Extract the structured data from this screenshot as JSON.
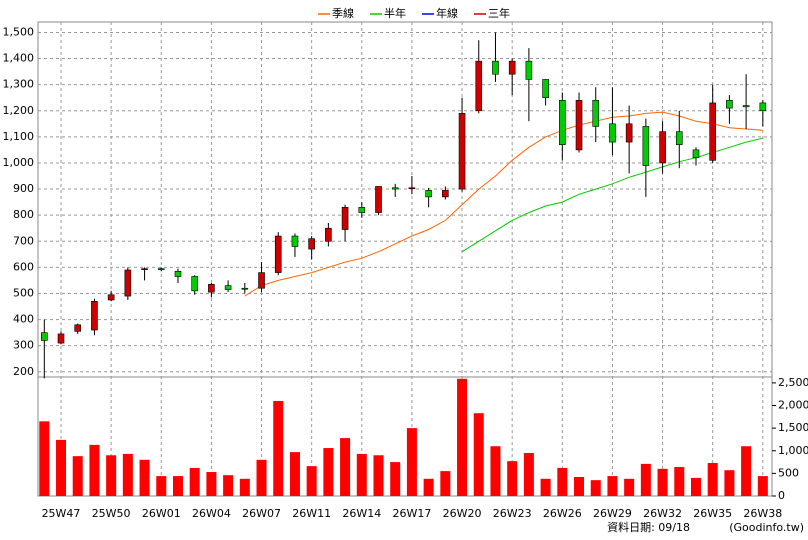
{
  "chart_data": {
    "type": "candlestick",
    "categories": [
      null,
      "25W47",
      null,
      null,
      "25W50",
      null,
      null,
      "26W01",
      null,
      null,
      "26W04",
      null,
      null,
      "26W07",
      null,
      null,
      "26W11",
      null,
      null,
      "26W14",
      null,
      null,
      "26W17",
      null,
      null,
      "26W20",
      null,
      null,
      "26W23",
      null,
      null,
      "26W26",
      null,
      null,
      "26W29",
      null,
      null,
      "26W32",
      null,
      null,
      "26W35",
      null,
      null,
      "26W38"
    ],
    "open": [
      350,
      310,
      355,
      360,
      475,
      490,
      595,
      595,
      585,
      565,
      505,
      530,
      520,
      520,
      580,
      720,
      670,
      700,
      745,
      830,
      810,
      905,
      905,
      895,
      870,
      900,
      1200,
      1390,
      1340,
      1390,
      1320,
      1240,
      1050,
      1240,
      1150,
      1080,
      1140,
      1000,
      1120,
      1050,
      1010,
      1240,
      1220,
      1230
    ],
    "high": [
      400,
      355,
      385,
      480,
      510,
      600,
      600,
      600,
      595,
      570,
      540,
      550,
      540,
      620,
      735,
      730,
      720,
      770,
      840,
      850,
      910,
      920,
      950,
      905,
      910,
      1250,
      1470,
      1500,
      1400,
      1440,
      1320,
      1270,
      1270,
      1290,
      1290,
      1220,
      1170,
      1160,
      1200,
      1060,
      1300,
      1260,
      1340,
      1240
    ],
    "low": [
      175,
      305,
      345,
      340,
      470,
      475,
      550,
      585,
      540,
      495,
      485,
      505,
      500,
      505,
      570,
      640,
      630,
      680,
      700,
      790,
      800,
      870,
      880,
      830,
      860,
      890,
      1190,
      1310,
      1260,
      1160,
      1220,
      1010,
      1040,
      1080,
      1030,
      960,
      870,
      960,
      980,
      990,
      1000,
      1150,
      1130,
      1140
    ],
    "close": [
      320,
      345,
      380,
      470,
      495,
      590,
      595,
      592,
      565,
      510,
      535,
      515,
      518,
      580,
      720,
      680,
      710,
      750,
      830,
      810,
      910,
      900,
      905,
      870,
      895,
      1190,
      1390,
      1340,
      1390,
      1320,
      1250,
      1070,
      1240,
      1140,
      1080,
      1150,
      990,
      1120,
      1070,
      1020,
      1230,
      1210,
      1215,
      1200
    ],
    "up_color": "#cc0000",
    "down_color": "#00cc00",
    "volume": {
      "color": "#ff0000",
      "values": [
        1650,
        1240,
        880,
        1130,
        900,
        930,
        800,
        440,
        440,
        620,
        530,
        460,
        380,
        800,
        2100,
        970,
        660,
        1060,
        1280,
        930,
        900,
        750,
        1500,
        380,
        550,
        2590,
        1830,
        1100,
        770,
        950,
        380,
        620,
        420,
        350,
        440,
        380,
        710,
        600,
        640,
        400,
        730,
        570,
        1100,
        440
      ]
    },
    "series": [
      {
        "name": "季線",
        "color": "#ff6600",
        "values": [
          null,
          null,
          null,
          null,
          null,
          null,
          null,
          null,
          null,
          null,
          null,
          null,
          490,
          530,
          550,
          565,
          580,
          600,
          620,
          635,
          660,
          690,
          720,
          745,
          780,
          840,
          900,
          950,
          1010,
          1060,
          1100,
          1125,
          1145,
          1160,
          1175,
          1180,
          1190,
          1195,
          1180,
          1160,
          1150,
          1135,
          1130,
          1125
        ]
      },
      {
        "name": "半年",
        "color": "#00cc00",
        "values": [
          null,
          null,
          null,
          null,
          null,
          null,
          null,
          null,
          null,
          null,
          null,
          null,
          null,
          null,
          null,
          null,
          null,
          null,
          null,
          null,
          null,
          null,
          null,
          null,
          null,
          660,
          700,
          740,
          780,
          810,
          835,
          850,
          880,
          900,
          920,
          945,
          965,
          985,
          1005,
          1020,
          1040,
          1060,
          1080,
          1095
        ]
      },
      {
        "name": "年線",
        "color": "#0000ff",
        "values": [
          null,
          null,
          null,
          null,
          null,
          null,
          null,
          null,
          null,
          null,
          null,
          null,
          null,
          null,
          null,
          null,
          null,
          null,
          null,
          null,
          null,
          null,
          null,
          null,
          null,
          null,
          null,
          null,
          null,
          null,
          null,
          null,
          null,
          null,
          null,
          null,
          null,
          null,
          null,
          null,
          null,
          null,
          null,
          null
        ]
      },
      {
        "name": "三年",
        "color": "#cc0000",
        "values": [
          null,
          null,
          null,
          null,
          null,
          null,
          null,
          null,
          null,
          null,
          null,
          null,
          null,
          null,
          null,
          null,
          null,
          null,
          null,
          null,
          null,
          null,
          null,
          null,
          null,
          null,
          null,
          null,
          null,
          null,
          null,
          null,
          null,
          null,
          null,
          null,
          null,
          null,
          null,
          null,
          null,
          null,
          null,
          null
        ]
      }
    ],
    "ylim": [
      180,
      1540
    ],
    "yticks": [
      200,
      300,
      400,
      500,
      600,
      700,
      800,
      900,
      {
        "value": 1000,
        "label": "1,000"
      },
      {
        "value": 1100,
        "label": "1,100"
      },
      {
        "value": 1200,
        "label": "1,200"
      },
      {
        "value": 1300,
        "label": "1,300"
      },
      {
        "value": 1400,
        "label": "1,400"
      },
      {
        "value": 1500,
        "label": "1,500"
      }
    ],
    "y2lim": [
      0,
      2630
    ],
    "y2ticks": [
      0,
      500,
      {
        "value": 1000,
        "label": "1,000"
      },
      {
        "value": 1500,
        "label": "1,500"
      },
      {
        "value": 2000,
        "label": "2,000"
      },
      {
        "value": 2500,
        "label": "2,500"
      }
    ],
    "grid": true,
    "footer": "資料日期: 09/18",
    "source": "(Goodinfo.tw)"
  }
}
